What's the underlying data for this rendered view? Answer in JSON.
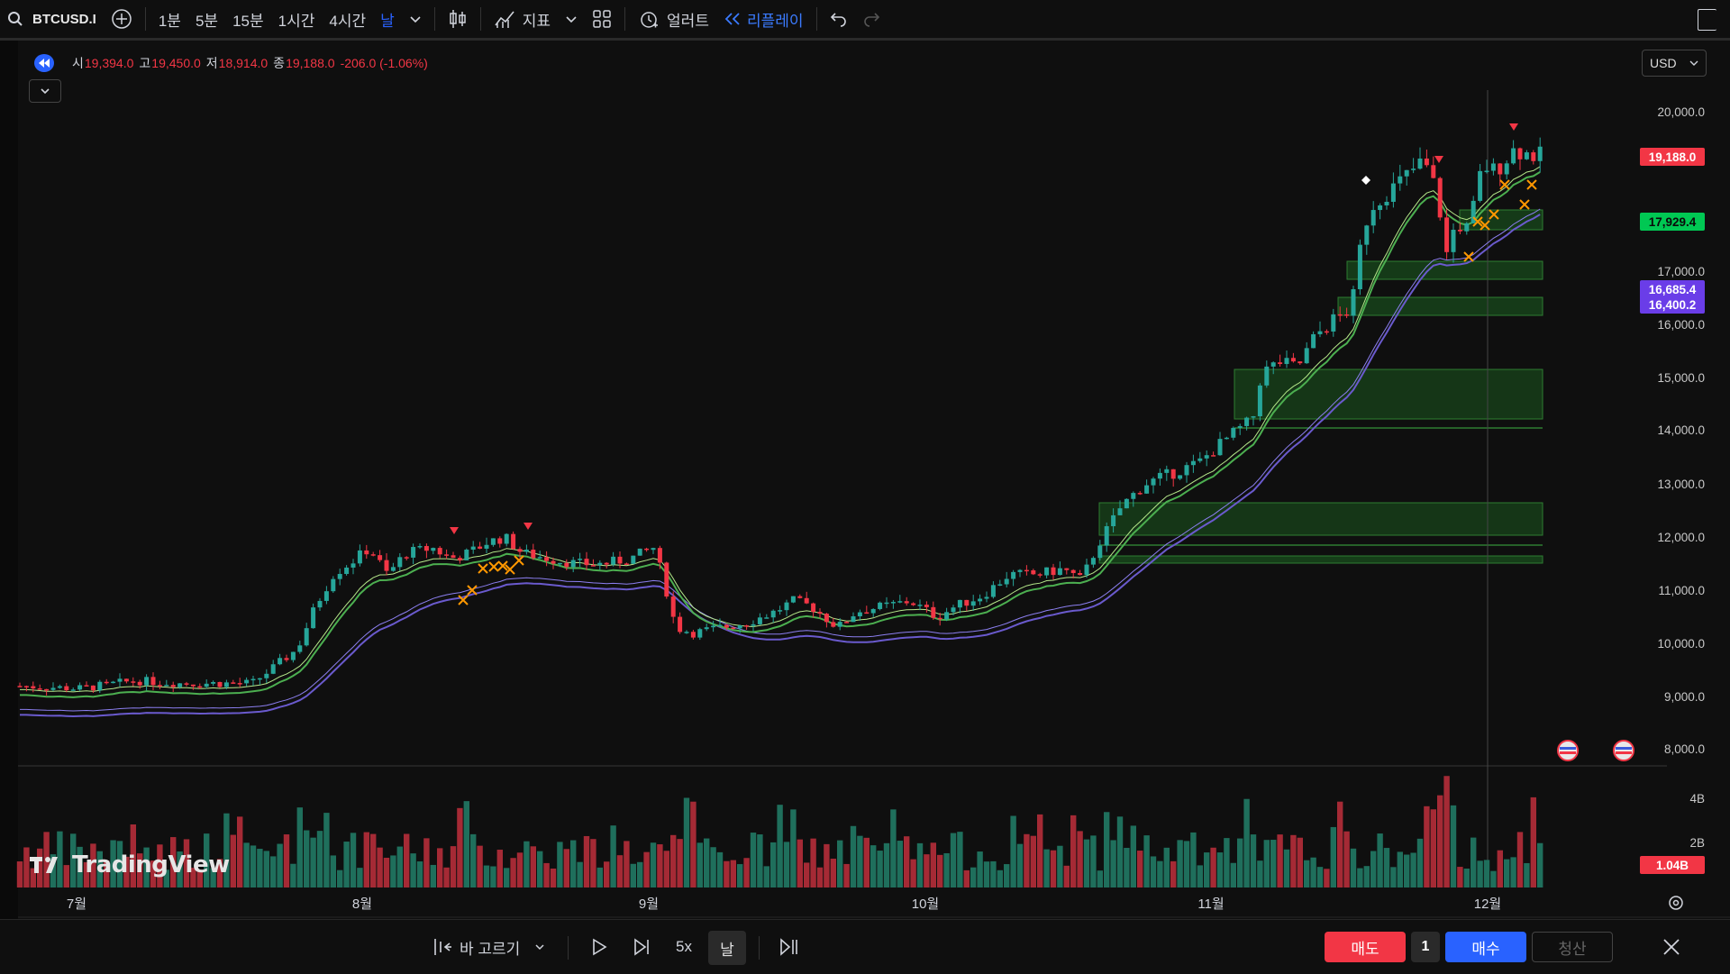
{
  "toolbar": {
    "symbol": "BTCUSD.I",
    "intervals": [
      "1분",
      "5분",
      "15분",
      "1시간",
      "4시간",
      "날"
    ],
    "active_interval": "날",
    "indicators_label": "지표",
    "alert_label": "얼러트",
    "replay_label": "리플레이"
  },
  "ohlc": {
    "open_label": "시",
    "open": "19,394.0",
    "high_label": "고",
    "high": "19,450.0",
    "low_label": "저",
    "low": "18,914.0",
    "close_label": "종",
    "close": "19,188.0",
    "change": "-206.0 (-1.06%)"
  },
  "currency": "USD",
  "price_axis": {
    "labels": [
      "20,000.0",
      "17,000.0",
      "16,000.0",
      "15,000.0",
      "14,000.0",
      "13,000.0",
      "12,000.0",
      "11,000.0",
      "10,000.0",
      "9,000.0",
      "8,000.0"
    ],
    "tags": [
      {
        "text": "19,188.0",
        "color": "#f23645"
      },
      {
        "text": "17,929.4",
        "color": "#00c853"
      },
      {
        "text": "16,685.4",
        "color": "#6a3de8"
      },
      {
        "text": "16,400.2",
        "color": "#6a3de8"
      }
    ]
  },
  "volume_axis": {
    "labels": [
      "4B",
      "2B"
    ],
    "tag": {
      "text": "1.04B",
      "color": "#f23645"
    }
  },
  "time_axis": [
    "7월",
    "8월",
    "9월",
    "10월",
    "11월",
    "12월"
  ],
  "watermark": "TradingView",
  "bottom": {
    "bar_select": "바 고르기",
    "speed": "5x",
    "interval": "날",
    "sell": "매도",
    "qty": "1",
    "buy": "매수",
    "close_position": "청산"
  },
  "colors": {
    "up": "#26a69a",
    "down": "#f23645",
    "ema_fast": "#4caf50",
    "ema_slow": "#6a5acd",
    "zone": "#1b5e20"
  }
}
